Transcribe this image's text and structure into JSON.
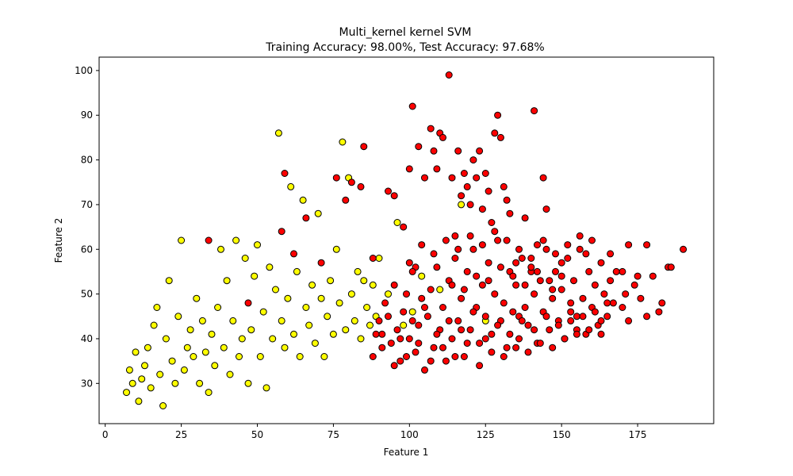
{
  "chart_data": {
    "type": "scatter",
    "title": "Multi_kernel kernel SVM",
    "subtitle": "Training Accuracy: 98.00%, Test Accuracy: 97.68%",
    "xlabel": "Feature 1",
    "ylabel": "Feature 2",
    "xlim": [
      -2,
      200
    ],
    "ylim": [
      21,
      103
    ],
    "xticks": [
      0,
      25,
      50,
      75,
      100,
      125,
      150,
      175
    ],
    "yticks": [
      30,
      40,
      50,
      60,
      70,
      80,
      90,
      100
    ],
    "grid": false,
    "legend": "none",
    "series": [
      {
        "color": "#ffff00",
        "points": [
          [
            7,
            28
          ],
          [
            8,
            33
          ],
          [
            9,
            30
          ],
          [
            10,
            37
          ],
          [
            11,
            26
          ],
          [
            12,
            31
          ],
          [
            13,
            34
          ],
          [
            14,
            38
          ],
          [
            15,
            29
          ],
          [
            16,
            43
          ],
          [
            17,
            47
          ],
          [
            18,
            32
          ],
          [
            19,
            25
          ],
          [
            20,
            40
          ],
          [
            21,
            53
          ],
          [
            22,
            35
          ],
          [
            23,
            30
          ],
          [
            24,
            45
          ],
          [
            25,
            62
          ],
          [
            26,
            33
          ],
          [
            27,
            38
          ],
          [
            28,
            42
          ],
          [
            29,
            36
          ],
          [
            30,
            49
          ],
          [
            31,
            30
          ],
          [
            32,
            44
          ],
          [
            33,
            37
          ],
          [
            34,
            28
          ],
          [
            35,
            41
          ],
          [
            36,
            34
          ],
          [
            37,
            47
          ],
          [
            38,
            60
          ],
          [
            39,
            38
          ],
          [
            40,
            53
          ],
          [
            41,
            32
          ],
          [
            42,
            44
          ],
          [
            43,
            62
          ],
          [
            44,
            36
          ],
          [
            45,
            40
          ],
          [
            46,
            58
          ],
          [
            47,
            30
          ],
          [
            48,
            42
          ],
          [
            49,
            54
          ],
          [
            50,
            61
          ],
          [
            51,
            36
          ],
          [
            52,
            46
          ],
          [
            53,
            29
          ],
          [
            54,
            56
          ],
          [
            55,
            40
          ],
          [
            56,
            51
          ],
          [
            57,
            86
          ],
          [
            58,
            44
          ],
          [
            59,
            38
          ],
          [
            60,
            49
          ],
          [
            61,
            74
          ],
          [
            62,
            41
          ],
          [
            63,
            55
          ],
          [
            64,
            36
          ],
          [
            65,
            71
          ],
          [
            66,
            47
          ],
          [
            67,
            43
          ],
          [
            68,
            52
          ],
          [
            69,
            39
          ],
          [
            70,
            68
          ],
          [
            71,
            49
          ],
          [
            72,
            36
          ],
          [
            73,
            45
          ],
          [
            74,
            53
          ],
          [
            75,
            41
          ],
          [
            76,
            60
          ],
          [
            77,
            48
          ],
          [
            78,
            84
          ],
          [
            79,
            42
          ],
          [
            80,
            76
          ],
          [
            81,
            50
          ],
          [
            82,
            44
          ],
          [
            83,
            55
          ],
          [
            84,
            40
          ],
          [
            85,
            53
          ],
          [
            86,
            47
          ],
          [
            87,
            43
          ],
          [
            88,
            52
          ],
          [
            89,
            45
          ],
          [
            90,
            58
          ],
          [
            93,
            50
          ],
          [
            96,
            66
          ],
          [
            98,
            43
          ],
          [
            101,
            46
          ],
          [
            104,
            54
          ],
          [
            110,
            51
          ],
          [
            117,
            70
          ],
          [
            125,
            44
          ]
        ]
      },
      {
        "color": "#ff0000",
        "points": [
          [
            34,
            62
          ],
          [
            47,
            48
          ],
          [
            58,
            64
          ],
          [
            59,
            77
          ],
          [
            62,
            59
          ],
          [
            66,
            67
          ],
          [
            71,
            57
          ],
          [
            76,
            76
          ],
          [
            79,
            71
          ],
          [
            81,
            75
          ],
          [
            84,
            74
          ],
          [
            85,
            83
          ],
          [
            88,
            58
          ],
          [
            91,
            41
          ],
          [
            93,
            73
          ],
          [
            95,
            72
          ],
          [
            98,
            65
          ],
          [
            100,
            78
          ],
          [
            101,
            92
          ],
          [
            102,
            56
          ],
          [
            103,
            83
          ],
          [
            105,
            76
          ],
          [
            107,
            87
          ],
          [
            108,
            82
          ],
          [
            109,
            78
          ],
          [
            110,
            86
          ],
          [
            111,
            85
          ],
          [
            113,
            99
          ],
          [
            114,
            76
          ],
          [
            115,
            63
          ],
          [
            116,
            82
          ],
          [
            117,
            72
          ],
          [
            118,
            77
          ],
          [
            119,
            74
          ],
          [
            120,
            70
          ],
          [
            121,
            80
          ],
          [
            122,
            76
          ],
          [
            123,
            82
          ],
          [
            124,
            69
          ],
          [
            125,
            77
          ],
          [
            126,
            73
          ],
          [
            127,
            66
          ],
          [
            128,
            86
          ],
          [
            129,
            90
          ],
          [
            130,
            85
          ],
          [
            131,
            74
          ],
          [
            132,
            71
          ],
          [
            133,
            68
          ],
          [
            135,
            57
          ],
          [
            136,
            45
          ],
          [
            138,
            67
          ],
          [
            140,
            55
          ],
          [
            141,
            91
          ],
          [
            142,
            61
          ],
          [
            144,
            76
          ],
          [
            145,
            69
          ],
          [
            147,
            51
          ],
          [
            150,
            57
          ],
          [
            153,
            48
          ],
          [
            155,
            42
          ],
          [
            158,
            59
          ],
          [
            160,
            62
          ],
          [
            163,
            41
          ],
          [
            166,
            59
          ],
          [
            170,
            55
          ],
          [
            172,
            61
          ],
          [
            175,
            54
          ],
          [
            178,
            61
          ],
          [
            182,
            46
          ],
          [
            185,
            56
          ],
          [
            190,
            60
          ],
          [
            88,
            36
          ],
          [
            90,
            44
          ],
          [
            92,
            48
          ],
          [
            94,
            39
          ],
          [
            95,
            52
          ],
          [
            96,
            42
          ],
          [
            97,
            35
          ],
          [
            98,
            46
          ],
          [
            99,
            50
          ],
          [
            100,
            40
          ],
          [
            101,
            55
          ],
          [
            102,
            37
          ],
          [
            103,
            43
          ],
          [
            104,
            49
          ],
          [
            105,
            33
          ],
          [
            106,
            45
          ],
          [
            107,
            51
          ],
          [
            108,
            38
          ],
          [
            109,
            56
          ],
          [
            110,
            42
          ],
          [
            111,
            47
          ],
          [
            112,
            35
          ],
          [
            113,
            53
          ],
          [
            114,
            40
          ],
          [
            115,
            58
          ],
          [
            116,
            44
          ],
          [
            117,
            49
          ],
          [
            118,
            36
          ],
          [
            119,
            55
          ],
          [
            120,
            42
          ],
          [
            121,
            60
          ],
          [
            122,
            47
          ],
          [
            123,
            39
          ],
          [
            124,
            52
          ],
          [
            125,
            45
          ],
          [
            126,
            57
          ],
          [
            127,
            41
          ],
          [
            128,
            50
          ],
          [
            129,
            62
          ],
          [
            130,
            44
          ],
          [
            131,
            48
          ],
          [
            132,
            38
          ],
          [
            133,
            55
          ],
          [
            134,
            46
          ],
          [
            135,
            52
          ],
          [
            136,
            40
          ],
          [
            137,
            58
          ],
          [
            138,
            47
          ],
          [
            139,
            43
          ],
          [
            140,
            56
          ],
          [
            141,
            50
          ],
          [
            142,
            39
          ],
          [
            143,
            53
          ],
          [
            144,
            46
          ],
          [
            145,
            60
          ],
          [
            146,
            42
          ],
          [
            147,
            49
          ],
          [
            148,
            55
          ],
          [
            149,
            44
          ],
          [
            150,
            51
          ],
          [
            151,
            40
          ],
          [
            152,
            58
          ],
          [
            153,
            46
          ],
          [
            154,
            53
          ],
          [
            155,
            45
          ],
          [
            156,
            60
          ],
          [
            157,
            49
          ],
          [
            158,
            41
          ],
          [
            159,
            55
          ],
          [
            160,
            47
          ],
          [
            161,
            52
          ],
          [
            162,
            43
          ],
          [
            163,
            57
          ],
          [
            164,
            50
          ],
          [
            165,
            45
          ],
          [
            166,
            53
          ],
          [
            167,
            48
          ],
          [
            168,
            55
          ],
          [
            170,
            47
          ],
          [
            171,
            50
          ],
          [
            172,
            44
          ],
          [
            174,
            52
          ],
          [
            176,
            49
          ],
          [
            178,
            45
          ],
          [
            180,
            54
          ],
          [
            183,
            48
          ],
          [
            186,
            56
          ],
          [
            89,
            41
          ],
          [
            91,
            38
          ],
          [
            93,
            45
          ],
          [
            95,
            34
          ],
          [
            97,
            40
          ],
          [
            99,
            36
          ],
          [
            101,
            44
          ],
          [
            103,
            39
          ],
          [
            105,
            47
          ],
          [
            107,
            35
          ],
          [
            109,
            41
          ],
          [
            111,
            38
          ],
          [
            113,
            44
          ],
          [
            115,
            36
          ],
          [
            117,
            42
          ],
          [
            119,
            39
          ],
          [
            121,
            46
          ],
          [
            123,
            34
          ],
          [
            125,
            40
          ],
          [
            127,
            37
          ],
          [
            129,
            43
          ],
          [
            131,
            36
          ],
          [
            133,
            41
          ],
          [
            135,
            38
          ],
          [
            137,
            44
          ],
          [
            139,
            37
          ],
          [
            141,
            42
          ],
          [
            143,
            39
          ],
          [
            145,
            45
          ],
          [
            147,
            38
          ],
          [
            149,
            43
          ],
          [
            151,
            40
          ],
          [
            153,
            44
          ],
          [
            155,
            41
          ],
          [
            157,
            45
          ],
          [
            159,
            42
          ],
          [
            161,
            46
          ],
          [
            163,
            44
          ],
          [
            165,
            48
          ],
          [
            100,
            57
          ],
          [
            104,
            61
          ],
          [
            108,
            59
          ],
          [
            112,
            62
          ],
          [
            116,
            60
          ],
          [
            120,
            63
          ],
          [
            124,
            61
          ],
          [
            128,
            64
          ],
          [
            132,
            62
          ],
          [
            136,
            60
          ],
          [
            140,
            58
          ],
          [
            144,
            62
          ],
          [
            148,
            59
          ],
          [
            152,
            61
          ],
          [
            156,
            63
          ],
          [
            114,
            52
          ],
          [
            118,
            51
          ],
          [
            122,
            54
          ],
          [
            126,
            53
          ],
          [
            130,
            56
          ],
          [
            134,
            54
          ],
          [
            138,
            52
          ],
          [
            142,
            55
          ],
          [
            146,
            53
          ],
          [
            150,
            54
          ]
        ]
      }
    ]
  }
}
